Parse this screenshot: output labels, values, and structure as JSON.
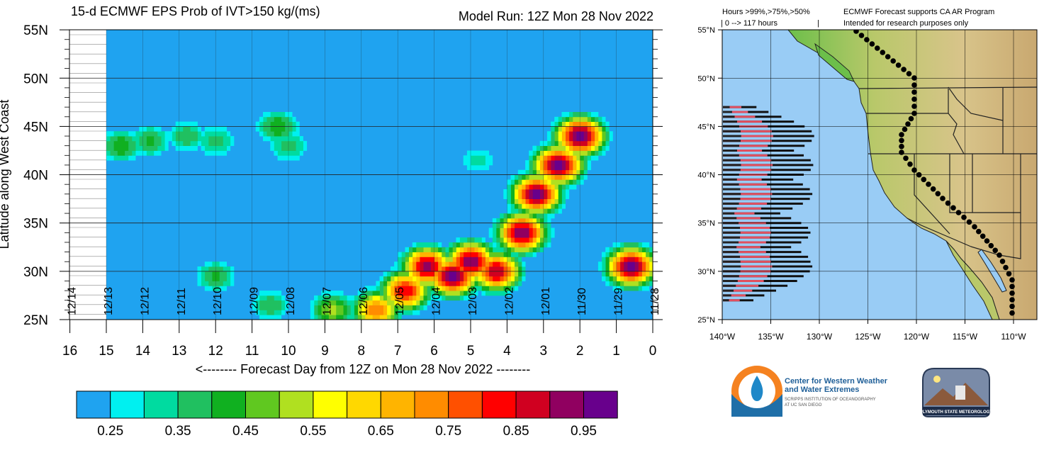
{
  "left_panel": {
    "title": "15-d ECMWF EPS Prob of IVT>150 kg/(ms)",
    "model_run": "Model Run: 12Z Mon 28 Nov 2022",
    "ylabel": "Latitude along West Coast",
    "xlabel": "<-------- Forecast Day from 12Z on Mon 28 Nov 2022 --------",
    "colorbar": {
      "colors": [
        "#1fa3f0",
        "#00f0f0",
        "#00dba0",
        "#20c060",
        "#10b020",
        "#60c820",
        "#b0e020",
        "#ffff00",
        "#ffd800",
        "#ffb400",
        "#ff8c00",
        "#ff5000",
        "#ff0000",
        "#d00020",
        "#900060",
        "#68008c"
      ],
      "labels": [
        "0.25",
        "0.35",
        "0.45",
        "0.55",
        "0.65",
        "0.75",
        "0.85",
        "0.95"
      ]
    }
  },
  "right_panel": {
    "legend_hours": "Hours >99%,>75%,>50%",
    "legend_range": "| 0 --> 117 hours",
    "note_line1": "ECMWF Forecast supports CA AR Program",
    "note_line2": "Intended for research purposes only",
    "lat_ticks": [
      "55°N",
      "50°N",
      "45°N",
      "40°N",
      "35°N",
      "30°N",
      "25°N"
    ],
    "lon_ticks": [
      "140°W",
      "135°W",
      "130°W",
      "125°W",
      "120°W",
      "115°W",
      "110°W"
    ]
  },
  "logos": {
    "cw3e_line1": "Center for Western Weather",
    "cw3e_line2": "and Water Extremes",
    "cw3e_line3": "SCRIPPS INSTITUTION OF OCEANOGRAPHY",
    "cw3e_line4": "AT UC SAN DIEGO",
    "psu_text": "PLYMOUTH STATE METEOROLOGY"
  },
  "chart_data": {
    "type": "heatmap",
    "title": "15-d ECMWF EPS Prob of IVT>150 kg/(ms)",
    "subtitle": "Model Run: 12Z Mon 28 Nov 2022",
    "xlabel": "<-------- Forecast Day from 12Z on Mon 28 Nov 2022 --------",
    "ylabel": "Latitude along West Coast",
    "x_ticks": [
      "16",
      "15",
      "14",
      "13",
      "12",
      "11",
      "10",
      "9",
      "8",
      "7",
      "6",
      "5",
      "4",
      "3",
      "2",
      "1",
      "0"
    ],
    "x_range": [
      16,
      0
    ],
    "y_ticks": [
      "55N",
      "50N",
      "45N",
      "40N",
      "35N",
      "30N",
      "25N"
    ],
    "y_range": [
      25,
      55
    ],
    "date_labels": [
      "12/14",
      "12/13",
      "12/12",
      "12/11",
      "12/10",
      "12/09",
      "12/08",
      "12/07",
      "12/06",
      "12/05",
      "12/04",
      "12/03",
      "12/02",
      "12/01",
      "11/30",
      "11/29",
      "11/28"
    ],
    "data_extent_days": [
      0,
      15
    ],
    "background_value": 0.2,
    "regions": [
      {
        "day": 14.6,
        "lat": 43.0,
        "prob": 0.45
      },
      {
        "day": 13.8,
        "lat": 43.5,
        "prob": 0.42
      },
      {
        "day": 12.8,
        "lat": 44.0,
        "prob": 0.4
      },
      {
        "day": 12.0,
        "lat": 43.5,
        "prob": 0.38
      },
      {
        "day": 10.3,
        "lat": 45.0,
        "prob": 0.45
      },
      {
        "day": 10.0,
        "lat": 43.0,
        "prob": 0.38
      },
      {
        "day": 4.8,
        "lat": 41.5,
        "prob": 0.32
      },
      {
        "day": 12.0,
        "lat": 29.5,
        "prob": 0.42
      },
      {
        "day": 10.5,
        "lat": 26.5,
        "prob": 0.4
      },
      {
        "day": 8.8,
        "lat": 26.0,
        "prob": 0.52
      },
      {
        "day": 7.6,
        "lat": 26.0,
        "prob": 0.75
      },
      {
        "day": 6.8,
        "lat": 28.0,
        "prob": 0.85
      },
      {
        "day": 6.2,
        "lat": 30.5,
        "prob": 0.93
      },
      {
        "day": 5.5,
        "lat": 29.5,
        "prob": 0.98
      },
      {
        "day": 5.0,
        "lat": 31.0,
        "prob": 0.95
      },
      {
        "day": 4.3,
        "lat": 30.0,
        "prob": 0.9
      },
      {
        "day": 3.6,
        "lat": 34.0,
        "prob": 0.95
      },
      {
        "day": 3.2,
        "lat": 38.0,
        "prob": 0.97
      },
      {
        "day": 2.6,
        "lat": 41.0,
        "prob": 0.98
      },
      {
        "day": 2.0,
        "lat": 44.0,
        "prob": 0.99
      },
      {
        "day": 0.6,
        "lat": 30.5,
        "prob": 0.97
      }
    ]
  }
}
